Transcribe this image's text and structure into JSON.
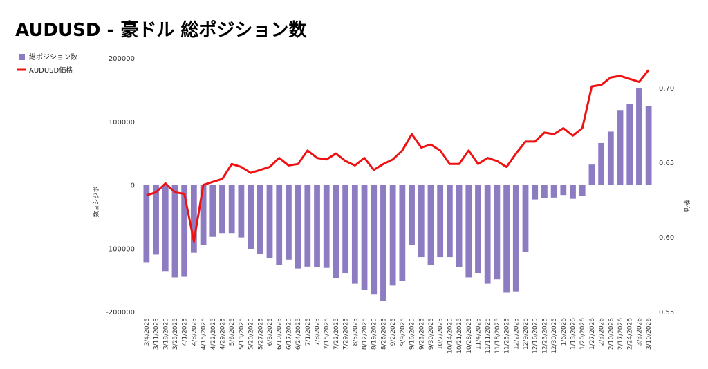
{
  "chart_data": {
    "type": "bar",
    "title": "AUDUSD - 豪ドル 総ポジション数",
    "legend_position": "left",
    "grid": false,
    "categories": [
      "3/4/2025",
      "3/11/2025",
      "3/18/2025",
      "3/25/2025",
      "4/1/2025",
      "4/8/2025",
      "4/15/2025",
      "4/22/2025",
      "4/29/2025",
      "5/6/2025",
      "5/13/2025",
      "5/20/2025",
      "5/27/2025",
      "6/3/2025",
      "6/10/2025",
      "6/17/2025",
      "6/24/2025",
      "7/1/2025",
      "7/8/2025",
      "7/15/2025",
      "7/22/2025",
      "7/29/2025",
      "8/5/2025",
      "8/12/2025",
      "8/19/2025",
      "8/26/2025",
      "9/2/2025",
      "9/9/2025",
      "9/16/2025",
      "9/23/2025",
      "9/30/2025",
      "10/7/2025",
      "10/14/2025",
      "10/21/2025",
      "10/28/2025",
      "11/4/2025",
      "11/11/2025",
      "11/18/2025",
      "11/25/2025",
      "12/2/2025",
      "12/9/2025",
      "12/16/2025",
      "12/23/2025",
      "12/30/2025",
      "1/6/2026",
      "1/13/2026",
      "1/20/2026",
      "1/27/2026",
      "2/3/2026",
      "2/10/2026",
      "2/17/2026",
      "2/24/2026",
      "3/3/2026",
      "3/10/2026"
    ],
    "x_tick_labels": [
      "3/4/2025",
      "3/11/2025",
      "3/18/2025",
      "3/25/2025",
      "4/1/2025",
      "4/8/2025",
      "4/15/2025",
      "4/22/2025",
      "4/29/2025",
      "5/6/2025",
      "5/13/2025",
      "5/20/2025",
      "5/27/2025",
      "6/3/2025",
      "6/10/2025",
      "6/17/2025",
      "6/24/2025",
      "7/1/2025",
      "7/8/2025",
      "7/15/2025",
      "7/22/2025",
      "7/29/2025",
      "8/5/2025",
      "8/12/2025",
      "8/19/2025",
      "8/26/2025",
      "9/2/2025",
      "9/9/2025",
      "9/16/2025",
      "9/23/2025",
      "9/30/2025",
      "10/7/2025",
      "10/14/2025",
      "10/21/2025",
      "10/28/2025",
      "11/4/2025",
      "11/11/2025",
      "11/18/2025",
      "11/25/2025",
      "12/2/2025",
      "12/9/2025",
      "12/16/2025",
      "12/23/2025",
      "12/30/2025",
      "1/6/2026",
      "1/13/2026",
      "1/20/2026",
      "1/27/2026",
      "2/3/2026",
      "2/10/2026",
      "2/17/2026",
      "2/24/2026",
      "3/3/2026",
      "3/10/2026"
    ],
    "series": [
      {
        "name": "総ポジション数",
        "kind": "bar",
        "axis": "left",
        "color": "#8e7cc3",
        "values": [
          -122000,
          -110000,
          -136000,
          -146000,
          -145000,
          -107000,
          -95000,
          -82000,
          -76000,
          -76000,
          -83000,
          -101000,
          -109000,
          -115000,
          -126000,
          -118000,
          -132000,
          -129000,
          -130000,
          -131000,
          -147000,
          -139000,
          -156000,
          -166000,
          -173000,
          -183000,
          -159000,
          -152000,
          -95000,
          -114000,
          -127000,
          -114000,
          -114000,
          -130000,
          -146000,
          -139000,
          -156000,
          -149000,
          -170000,
          -168000,
          -106000,
          -23000,
          -21000,
          -20000,
          -16000,
          -22000,
          -18000,
          32000,
          66000,
          84000,
          118000,
          127000,
          152000,
          124000
        ]
      },
      {
        "name": "AUDUSD価格",
        "kind": "line",
        "axis": "right",
        "color": "#ee1111",
        "values": [
          0.628,
          0.63,
          0.636,
          0.63,
          0.629,
          0.597,
          0.635,
          0.637,
          0.639,
          0.649,
          0.647,
          0.643,
          0.645,
          0.647,
          0.653,
          0.648,
          0.649,
          0.658,
          0.653,
          0.652,
          0.656,
          0.651,
          0.648,
          0.653,
          0.645,
          0.649,
          0.652,
          0.658,
          0.669,
          0.66,
          0.662,
          0.658,
          0.649,
          0.649,
          0.658,
          0.649,
          0.653,
          0.651,
          0.647,
          0.656,
          0.664,
          0.664,
          0.67,
          0.669,
          0.673,
          0.668,
          0.673,
          0.701,
          0.702,
          0.707,
          0.708,
          0.706,
          0.704,
          0.712
        ]
      }
    ],
    "y_left": {
      "label": "数ョシジポ",
      "ylim": [
        -200000,
        200000
      ],
      "ticks": [
        200000,
        100000,
        0,
        -100000,
        -200000
      ],
      "tick_labels": [
        "200000",
        "100000",
        "0",
        "-100000",
        "-200000"
      ]
    },
    "y_right": {
      "label": "格価",
      "ylim": [
        0.55,
        0.72
      ],
      "ticks": [
        0.7,
        0.65,
        0.6,
        0.55
      ],
      "tick_labels": [
        "0.70",
        "0.65",
        "0.60",
        "0.55"
      ]
    }
  }
}
